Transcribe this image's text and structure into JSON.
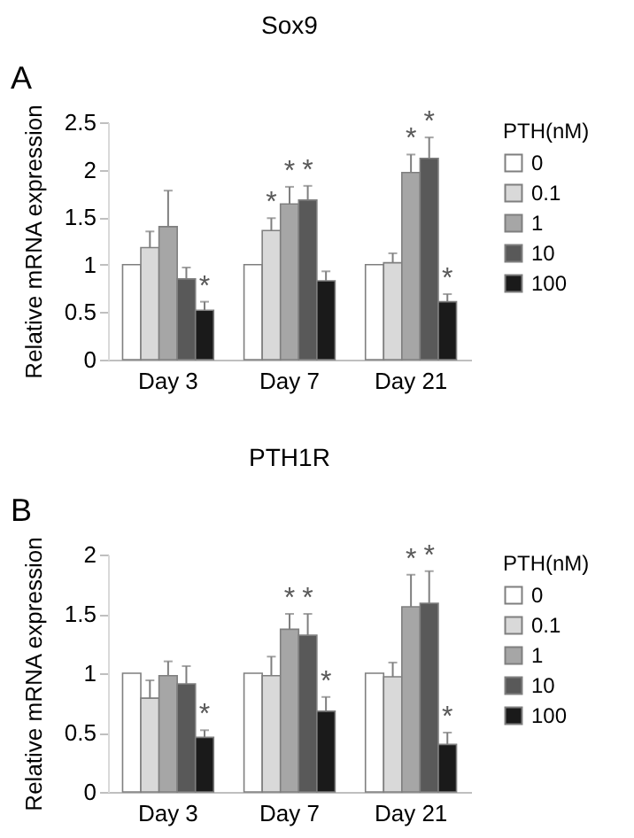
{
  "chart_data": [
    {
      "type": "bar",
      "title": "Sox9",
      "ylabel": "Relative mRNA expression",
      "legend_title": "PTH(nM)",
      "legend": "right",
      "grid": false,
      "categories": [
        "Day 3",
        "Day 7",
        "Day 21"
      ],
      "ylim": [
        0,
        2.5
      ],
      "yticks": [
        0,
        0.5,
        1,
        1.5,
        2,
        2.5
      ],
      "series": [
        {
          "name": "0",
          "color": "#ffffff",
          "values": [
            1,
            1,
            1
          ],
          "errors": [
            null,
            null,
            null
          ]
        },
        {
          "name": "0.1",
          "color": "#d9d9d9",
          "values": [
            1.18,
            1.36,
            1.02
          ],
          "errors": [
            [
              1.18,
              1.35
            ],
            [
              1.36,
              1.49
            ],
            [
              1.02,
              1.12
            ]
          ]
        },
        {
          "name": "1",
          "color": "#a6a6a6",
          "values": [
            1.4,
            1.64,
            1.97
          ],
          "errors": [
            [
              1.4,
              1.78
            ],
            [
              1.64,
              1.82
            ],
            [
              1.97,
              2.16
            ]
          ]
        },
        {
          "name": "10",
          "color": "#595959",
          "values": [
            0.85,
            1.68,
            2.12
          ],
          "errors": [
            [
              0.85,
              0.97
            ],
            [
              1.68,
              1.83
            ],
            [
              2.12,
              2.34
            ]
          ]
        },
        {
          "name": "100",
          "color": "#1a1a1a",
          "values": [
            0.52,
            0.83,
            0.61
          ],
          "errors": [
            [
              0.52,
              0.61
            ],
            [
              0.83,
              0.93
            ],
            [
              0.61,
              0.69
            ]
          ]
        }
      ],
      "annotations": [
        "A",
        {
          "text": "*",
          "x": "Day 3",
          "y": 0.52
        },
        {
          "text": "*",
          "x": "Day 7",
          "y": 1.36
        },
        {
          "text": "*",
          "x": "Day 7",
          "y": 1.64
        },
        {
          "text": "*",
          "x": "Day 7",
          "y": 1.68
        },
        {
          "text": "*",
          "x": "Day 21",
          "y": 1.97
        },
        {
          "text": "*",
          "x": "Day 21",
          "y": 2.12
        },
        {
          "text": "*",
          "x": "Day 21",
          "y": 0.61
        }
      ]
    },
    {
      "type": "bar",
      "title": "PTH1R",
      "ylabel": "Relative mRNA expression",
      "legend_title": "PTH(nM)",
      "legend": "right",
      "grid": false,
      "categories": [
        "Day 3",
        "Day 7",
        "Day 21"
      ],
      "ylim": [
        0,
        2
      ],
      "yticks": [
        0,
        0.5,
        1,
        1.5,
        2
      ],
      "series": [
        {
          "name": "0",
          "color": "#ffffff",
          "values": [
            1,
            1,
            1
          ],
          "errors": [
            null,
            null,
            null
          ]
        },
        {
          "name": "0.1",
          "color": "#d9d9d9",
          "values": [
            0.79,
            0.98,
            0.97
          ],
          "errors": [
            [
              0.79,
              0.94
            ],
            [
              0.98,
              1.14
            ],
            [
              0.97,
              1.09
            ]
          ]
        },
        {
          "name": "1",
          "color": "#a6a6a6",
          "values": [
            0.98,
            1.37,
            1.56
          ],
          "errors": [
            [
              0.98,
              1.1
            ],
            [
              1.37,
              1.5
            ],
            [
              1.56,
              1.83
            ]
          ]
        },
        {
          "name": "10",
          "color": "#595959",
          "values": [
            0.91,
            1.32,
            1.59
          ],
          "errors": [
            [
              0.91,
              1.06
            ],
            [
              1.32,
              1.5
            ],
            [
              1.59,
              1.86
            ]
          ]
        },
        {
          "name": "100",
          "color": "#1a1a1a",
          "values": [
            0.46,
            0.68,
            0.4
          ],
          "errors": [
            [
              0.46,
              0.52
            ],
            [
              0.68,
              0.8
            ],
            [
              0.4,
              0.5
            ]
          ]
        }
      ],
      "annotations": [
        "B",
        {
          "text": "*",
          "x": "Day 3",
          "y": 0.46
        },
        {
          "text": "*",
          "x": "Day 7",
          "y": 1.37
        },
        {
          "text": "*",
          "x": "Day 7",
          "y": 1.32
        },
        {
          "text": "*",
          "x": "Day 7",
          "y": 0.68
        },
        {
          "text": "*",
          "x": "Day 21",
          "y": 1.56
        },
        {
          "text": "*",
          "x": "Day 21",
          "y": 1.59
        },
        {
          "text": "*",
          "x": "Day 21",
          "y": 0.4
        }
      ]
    }
  ]
}
